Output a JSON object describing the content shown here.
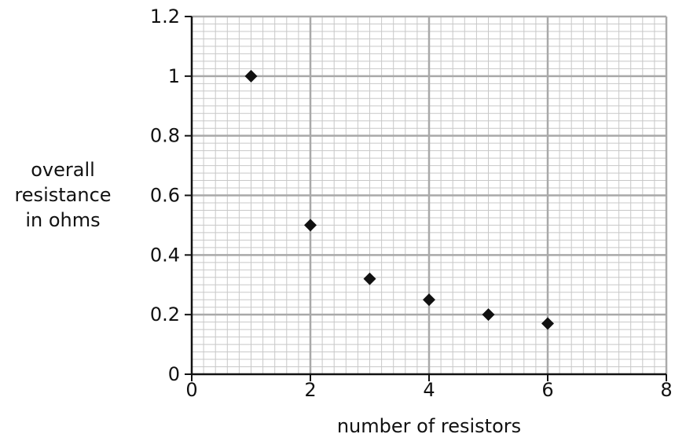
{
  "chart_data": {
    "type": "scatter",
    "xlabel": "number of resistors",
    "ylabel_lines": [
      "overall",
      "resistance",
      "in ohms"
    ],
    "xlim": [
      0,
      8
    ],
    "ylim": [
      0,
      1.2
    ],
    "x_ticks": [
      0,
      2,
      4,
      6,
      8
    ],
    "x_tick_labels": [
      "0",
      "2",
      "4",
      "6",
      "8"
    ],
    "y_ticks": [
      0,
      0.2,
      0.4,
      0.6,
      0.8,
      1.0,
      1.2
    ],
    "y_tick_labels": [
      "0",
      "0.2",
      "0.4",
      "0.6",
      "0.8",
      "1",
      "1.2"
    ],
    "grid": true,
    "marker": "diamond",
    "marker_color": "#111111",
    "points": [
      {
        "x": 1,
        "y": 1.0
      },
      {
        "x": 2,
        "y": 0.5
      },
      {
        "x": 3,
        "y": 0.32
      },
      {
        "x": 4,
        "y": 0.25
      },
      {
        "x": 5,
        "y": 0.2
      },
      {
        "x": 6,
        "y": 0.17
      }
    ]
  }
}
